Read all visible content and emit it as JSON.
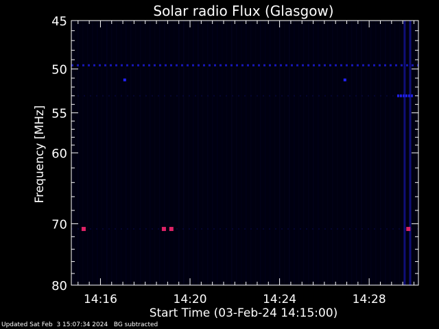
{
  "chart_data": {
    "type": "heatmap",
    "title": "Solar radio Flux (Glasgow)",
    "xlabel": "Start Time (03-Feb-24 14:15:00)",
    "ylabel": "Frequency [MHz]",
    "y_scale": "log",
    "xlim": [
      "14:14:42",
      "14:30:12"
    ],
    "ylim": [
      45,
      80
    ],
    "x_ticks": [
      "14:16",
      "14:20",
      "14:24",
      "14:28"
    ],
    "y_ticks": [
      "45",
      "50",
      "55",
      "60",
      "70",
      "80"
    ],
    "background_color": "#000010",
    "interference_lines_mhz": [
      49.6,
      53.0,
      70.8
    ],
    "hotspots": [
      {
        "time": "14:15:15",
        "freq_mhz": 70.8
      },
      {
        "time": "14:18:50",
        "freq_mhz": 70.8
      },
      {
        "time": "14:19:10",
        "freq_mhz": 70.8
      },
      {
        "time": "14:29:45",
        "freq_mhz": 70.8
      }
    ],
    "bright_columns": [
      "14:29:35",
      "14:29:50"
    ],
    "colors": {
      "faint": "#0a0a55",
      "medium": "#1a1acc",
      "strong": "#2222ff",
      "hotspot": "#dd2266"
    }
  },
  "footer": {
    "updated": "Updated Sat Feb  3 15:07:34 2024",
    "note": "BG subtracted"
  }
}
